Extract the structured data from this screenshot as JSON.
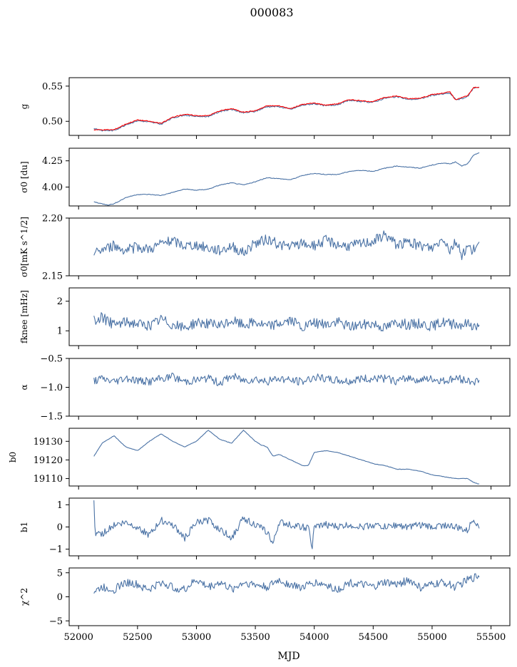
{
  "figure": {
    "title": "000083",
    "xlabel": "MJD",
    "xlim": [
      51920,
      55660
    ],
    "xticks": [
      52000,
      52500,
      53000,
      53500,
      54000,
      54500,
      55000,
      55500
    ],
    "x_start": 52130,
    "x_end": 55400
  },
  "colors": {
    "series": "#4a72a5",
    "overlay": "#ff0000"
  },
  "chart_data": [
    {
      "type": "line",
      "name": "g",
      "ylabel": "g",
      "ylim": [
        0.48,
        0.562
      ],
      "yticks": [
        0.5,
        0.55
      ],
      "ytick_labels": [
        "0.50",
        "0.55"
      ],
      "x": [
        52130,
        52200,
        52300,
        52400,
        52500,
        52600,
        52700,
        52800,
        52900,
        53000,
        53100,
        53200,
        53300,
        53400,
        53500,
        53600,
        53700,
        53800,
        53900,
        54000,
        54100,
        54200,
        54300,
        54400,
        54500,
        54600,
        54700,
        54800,
        54900,
        55000,
        55100,
        55150,
        55200,
        55250,
        55300,
        55350,
        55400
      ],
      "values": [
        0.49,
        0.487,
        0.487,
        0.495,
        0.501,
        0.499,
        0.496,
        0.505,
        0.509,
        0.507,
        0.507,
        0.514,
        0.517,
        0.512,
        0.514,
        0.521,
        0.521,
        0.517,
        0.523,
        0.525,
        0.522,
        0.524,
        0.53,
        0.528,
        0.527,
        0.533,
        0.535,
        0.531,
        0.532,
        0.537,
        0.539,
        0.54,
        0.531,
        0.532,
        0.535,
        0.547,
        0.549
      ],
      "overlay": {
        "name": "g (red)",
        "x": [
          52130,
          52200,
          52300,
          52400,
          52500,
          52600,
          52700,
          52800,
          52900,
          53000,
          53100,
          53200,
          53300,
          53400,
          53500,
          53600,
          53700,
          53800,
          53900,
          54000,
          54100,
          54200,
          54300,
          54400,
          54500,
          54600,
          54700,
          54800,
          54900,
          55000,
          55100,
          55150,
          55200,
          55250,
          55300,
          55350,
          55400
        ],
        "values": [
          0.488,
          0.488,
          0.488,
          0.496,
          0.502,
          0.5,
          0.497,
          0.506,
          0.51,
          0.508,
          0.508,
          0.515,
          0.518,
          0.513,
          0.515,
          0.522,
          0.522,
          0.518,
          0.524,
          0.526,
          0.523,
          0.525,
          0.531,
          0.529,
          0.528,
          0.534,
          0.536,
          0.532,
          0.533,
          0.538,
          0.54,
          0.542,
          0.53,
          0.534,
          0.536,
          0.548,
          0.548
        ]
      }
    },
    {
      "type": "line",
      "name": "sigma0_du",
      "ylabel": "σ0 [du]",
      "ylim": [
        3.82,
        4.37
      ],
      "yticks": [
        4.0,
        4.25
      ],
      "ytick_labels": [
        "4.00",
        "4.25"
      ],
      "x": [
        52130,
        52200,
        52250,
        52300,
        52400,
        52500,
        52600,
        52700,
        52800,
        52900,
        53000,
        53100,
        53200,
        53300,
        53400,
        53500,
        53600,
        53700,
        53800,
        53900,
        54000,
        54100,
        54200,
        54300,
        54400,
        54500,
        54600,
        54700,
        54800,
        54900,
        55000,
        55100,
        55150,
        55200,
        55250,
        55300,
        55350,
        55400
      ],
      "values": [
        3.86,
        3.84,
        3.83,
        3.84,
        3.9,
        3.93,
        3.93,
        3.92,
        3.95,
        3.98,
        3.97,
        3.98,
        4.02,
        4.04,
        4.02,
        4.05,
        4.09,
        4.08,
        4.07,
        4.11,
        4.13,
        4.12,
        4.12,
        4.15,
        4.16,
        4.15,
        4.18,
        4.2,
        4.19,
        4.18,
        4.21,
        4.23,
        4.22,
        4.24,
        4.2,
        4.22,
        4.3,
        4.33
      ]
    },
    {
      "type": "line",
      "name": "sigma0_mK",
      "ylabel": "σ0[mK s^1/2]",
      "ylim": [
        2.15,
        2.2
      ],
      "yticks": [
        2.15,
        2.2
      ],
      "ytick_labels": [
        "2.15",
        "2.20"
      ],
      "x": [
        52130,
        52200,
        52300,
        52400,
        52500,
        52600,
        52700,
        52800,
        52900,
        53000,
        53100,
        53200,
        53300,
        53400,
        53500,
        53600,
        53700,
        53800,
        53900,
        54000,
        54100,
        54200,
        54300,
        54400,
        54500,
        54600,
        54700,
        54800,
        54900,
        55000,
        55100,
        55150,
        55200,
        55250,
        55300,
        55350,
        55400
      ],
      "values": [
        2.169,
        2.173,
        2.176,
        2.172,
        2.175,
        2.173,
        2.178,
        2.18,
        2.176,
        2.177,
        2.174,
        2.172,
        2.176,
        2.17,
        2.178,
        2.182,
        2.177,
        2.175,
        2.178,
        2.176,
        2.181,
        2.177,
        2.176,
        2.178,
        2.18,
        2.186,
        2.177,
        2.179,
        2.176,
        2.174,
        2.183,
        2.172,
        2.18,
        2.168,
        2.175,
        2.172,
        2.176
      ]
    },
    {
      "type": "line",
      "name": "fknee",
      "ylabel": "fknee [mHz]",
      "ylim": [
        0.5,
        2.45
      ],
      "yticks": [
        1,
        2
      ],
      "ytick_labels": [
        "1",
        "2"
      ],
      "x": [
        52130,
        52200,
        52300,
        52400,
        52500,
        52600,
        52700,
        52800,
        52900,
        53000,
        53100,
        53200,
        53300,
        53400,
        53500,
        53600,
        53700,
        53800,
        53900,
        54000,
        54100,
        54200,
        54300,
        54400,
        54500,
        54600,
        54700,
        54800,
        54900,
        55000,
        55100,
        55200,
        55300,
        55400
      ],
      "values": [
        1.35,
        1.45,
        1.2,
        1.3,
        1.25,
        1.15,
        1.4,
        1.2,
        1.1,
        1.3,
        1.25,
        1.15,
        1.35,
        1.2,
        1.3,
        1.15,
        1.25,
        1.35,
        1.1,
        1.25,
        1.2,
        1.3,
        1.15,
        1.2,
        1.25,
        1.1,
        1.3,
        1.2,
        1.25,
        1.15,
        1.3,
        1.2,
        1.25,
        1.1
      ]
    },
    {
      "type": "line",
      "name": "alpha",
      "ylabel": "α",
      "ylim": [
        -1.5,
        -0.5
      ],
      "yticks": [
        -1.5,
        -1.0,
        -0.5
      ],
      "ytick_labels": [
        "−1.5",
        "−1.0",
        "−0.5"
      ],
      "x": [
        52130,
        52200,
        52300,
        52400,
        52500,
        52600,
        52700,
        52800,
        52900,
        53000,
        53100,
        53200,
        53300,
        53400,
        53500,
        53600,
        53700,
        53800,
        53900,
        54000,
        54100,
        54200,
        54300,
        54400,
        54500,
        54600,
        54700,
        54800,
        54900,
        55000,
        55100,
        55200,
        55300,
        55400
      ],
      "values": [
        -0.88,
        -0.85,
        -0.9,
        -0.83,
        -0.88,
        -0.9,
        -0.85,
        -0.82,
        -0.9,
        -0.87,
        -0.85,
        -0.92,
        -0.8,
        -0.88,
        -0.85,
        -0.9,
        -0.84,
        -0.88,
        -0.9,
        -0.82,
        -0.86,
        -0.88,
        -0.9,
        -0.84,
        -0.87,
        -0.85,
        -0.9,
        -0.83,
        -0.88,
        -0.86,
        -0.9,
        -0.84,
        -0.88,
        -0.9
      ]
    },
    {
      "type": "line",
      "name": "b0",
      "ylabel": "b0",
      "ylim": [
        19106,
        19137
      ],
      "yticks": [
        19110,
        19120,
        19130
      ],
      "ytick_labels": [
        "19110",
        "19120",
        "19130"
      ],
      "x": [
        52130,
        52200,
        52300,
        52400,
        52500,
        52600,
        52700,
        52800,
        52900,
        53000,
        53100,
        53200,
        53300,
        53400,
        53500,
        53550,
        53600,
        53650,
        53700,
        53800,
        53900,
        53950,
        54000,
        54100,
        54200,
        54300,
        54400,
        54500,
        54600,
        54700,
        54800,
        54900,
        55000,
        55100,
        55200,
        55300,
        55350,
        55400
      ],
      "values": [
        19122,
        19129,
        19133,
        19127,
        19125,
        19130,
        19134,
        19130,
        19127,
        19130,
        19136,
        19131,
        19129,
        19136,
        19130,
        19128,
        19127,
        19122,
        19123,
        19120,
        19117,
        19117,
        19124,
        19125,
        19124,
        19122,
        19120,
        19118,
        19117,
        19115,
        19115,
        19114,
        19112,
        19111,
        19110,
        19110,
        19108,
        19107
      ]
    },
    {
      "type": "line",
      "name": "b1",
      "ylabel": "b1",
      "ylim": [
        -1.3,
        1.3
      ],
      "yticks": [
        -1,
        0,
        1
      ],
      "ytick_labels": [
        "−1",
        "0",
        "1"
      ],
      "x": [
        52130,
        52140,
        52160,
        52200,
        52300,
        52400,
        52500,
        52600,
        52700,
        52800,
        52900,
        53000,
        53100,
        53200,
        53300,
        53400,
        53500,
        53600,
        53650,
        53700,
        53800,
        53900,
        53960,
        53980,
        54000,
        54100,
        54200,
        54300,
        54400,
        54500,
        54600,
        54700,
        54800,
        54900,
        55000,
        55100,
        55200,
        55300,
        55350,
        55400
      ],
      "values": [
        1.2,
        -0.4,
        -0.2,
        -0.3,
        0.1,
        0.2,
        0.0,
        -0.4,
        0.3,
        0.1,
        -0.5,
        0.2,
        0.3,
        -0.1,
        -0.5,
        0.4,
        0.1,
        -0.2,
        -0.8,
        0.2,
        0.1,
        0.0,
        -0.1,
        -1.1,
        0.0,
        0.1,
        0.0,
        0.1,
        0.0,
        0.1,
        0.0,
        0.1,
        0.0,
        0.1,
        0.0,
        0.1,
        0.0,
        -0.2,
        0.4,
        0.0
      ]
    },
    {
      "type": "line",
      "name": "chi2",
      "ylabel": "χ^2",
      "ylim": [
        -6,
        6
      ],
      "yticks": [
        -5,
        0,
        5
      ],
      "ytick_labels": [
        "−5",
        "0",
        "5"
      ],
      "x": [
        52130,
        52200,
        52300,
        52400,
        52500,
        52600,
        52700,
        52800,
        52900,
        53000,
        53100,
        53200,
        53300,
        53400,
        53500,
        53600,
        53700,
        53800,
        53900,
        54000,
        54100,
        54200,
        54300,
        54400,
        54500,
        54600,
        54700,
        54800,
        54900,
        55000,
        55100,
        55200,
        55300,
        55400
      ],
      "values": [
        1.0,
        2.0,
        1.5,
        3.0,
        2.5,
        1.5,
        3.0,
        2.0,
        1.5,
        3.5,
        2.0,
        3.0,
        1.5,
        3.0,
        2.5,
        2.0,
        3.5,
        2.5,
        2.0,
        3.0,
        2.5,
        1.5,
        3.0,
        2.5,
        2.0,
        3.0,
        2.5,
        3.5,
        2.0,
        2.5,
        3.0,
        2.0,
        3.5,
        4.5
      ]
    }
  ]
}
